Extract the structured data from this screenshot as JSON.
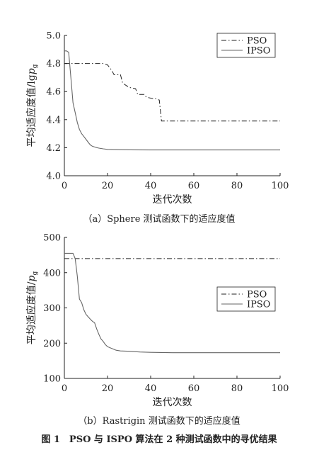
{
  "figure_caption": "图 1　PSO 与 ISPO 算法在 2 种测试函数中的寻优结果",
  "chart_data": [
    {
      "type": "line",
      "caption": "（a）Sphere 测试函数下的适应度值",
      "xlabel": "迭代次数",
      "ylabel_main": "平均适应度值/lg",
      "ylabel_var": "p",
      "ylabel_sub": "g",
      "xlim": [
        0,
        100
      ],
      "ylim": [
        4.0,
        5.0
      ],
      "xticks": [
        "0",
        "20",
        "40",
        "60",
        "80",
        "100"
      ],
      "yticks": [
        "4.0",
        "4.2",
        "4.4",
        "4.6",
        "4.8",
        "5.0"
      ],
      "legend_position": "top-right",
      "grid": false,
      "series": [
        {
          "name": "PSO",
          "style": "dashdot",
          "x": [
            0,
            18,
            20,
            21,
            22,
            23,
            26,
            27,
            29,
            30,
            33,
            34,
            37,
            38,
            41,
            42,
            44,
            45,
            100
          ],
          "y": [
            4.8,
            4.8,
            4.79,
            4.77,
            4.75,
            4.72,
            4.72,
            4.66,
            4.64,
            4.63,
            4.62,
            4.58,
            4.58,
            4.56,
            4.55,
            4.55,
            4.54,
            4.39,
            4.39
          ]
        },
        {
          "name": "IPSO",
          "style": "solid",
          "x": [
            0,
            1,
            2,
            3,
            4,
            5,
            6,
            7,
            8,
            9,
            10,
            11,
            12,
            13,
            14,
            15,
            16,
            18,
            20,
            25,
            30,
            40,
            50,
            100
          ],
          "y": [
            4.89,
            4.89,
            4.88,
            4.7,
            4.52,
            4.45,
            4.38,
            4.33,
            4.3,
            4.28,
            4.26,
            4.24,
            4.22,
            4.21,
            4.205,
            4.2,
            4.197,
            4.192,
            4.188,
            4.186,
            4.185,
            4.184,
            4.184,
            4.184
          ]
        }
      ]
    },
    {
      "type": "line",
      "caption": "（b）Rastrigin 测试函数下的适应度值",
      "xlabel": "迭代次数",
      "ylabel_main": "平均适应度值/",
      "ylabel_var": "p",
      "ylabel_sub": "g",
      "xlim": [
        0,
        100
      ],
      "ylim": [
        100,
        500
      ],
      "xticks": [
        "0",
        "20",
        "40",
        "60",
        "80",
        "100"
      ],
      "yticks": [
        "100",
        "200",
        "300",
        "400",
        "500"
      ],
      "legend_position": "center-right",
      "grid": false,
      "series": [
        {
          "name": "PSO",
          "style": "dashdot",
          "x": [
            0,
            100
          ],
          "y": [
            440,
            440
          ]
        },
        {
          "name": "IPSO",
          "style": "solid",
          "x": [
            0,
            4,
            5,
            6,
            7,
            8,
            9,
            10,
            11,
            12,
            13,
            14,
            15,
            16,
            17,
            18,
            19,
            20,
            22,
            24,
            26,
            30,
            35,
            40,
            50,
            100
          ],
          "y": [
            455,
            455,
            440,
            390,
            325,
            315,
            295,
            282,
            275,
            268,
            262,
            258,
            240,
            225,
            212,
            205,
            196,
            190,
            185,
            180,
            178,
            177,
            175,
            174,
            173,
            173
          ]
        }
      ]
    }
  ]
}
